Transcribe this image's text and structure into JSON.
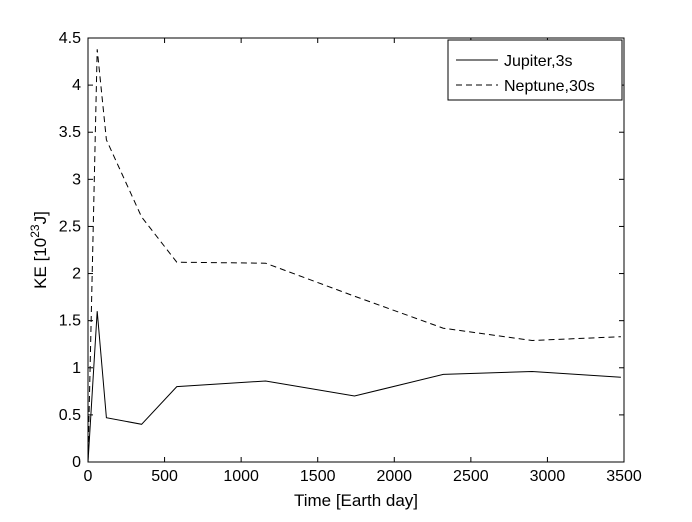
{
  "chart_data": {
    "type": "line",
    "title": "",
    "xlabel": "Time [Earth day]",
    "ylabel": {
      "prefix": "KE [10",
      "exponent": "23",
      "suffix": "J]"
    },
    "xlim": [
      0,
      3500
    ],
    "ylim": [
      0,
      4.5
    ],
    "xticks": [
      0,
      500,
      1000,
      1500,
      2000,
      2500,
      3000,
      3500
    ],
    "yticks": [
      0,
      0.5,
      1,
      1.5,
      2,
      2.5,
      3,
      3.5,
      4,
      4.5
    ],
    "xtick_labels": [
      "0",
      "500",
      "1000",
      "1500",
      "2000",
      "2500",
      "3000",
      "3500"
    ],
    "ytick_labels": [
      "0",
      "0.5",
      "1",
      "1.5",
      "2",
      "2.5",
      "3",
      "3.5",
      "4",
      "4.5"
    ],
    "grid": false,
    "legend_position": "top-right",
    "series": [
      {
        "name": "Jupiter,3s",
        "style": "solid",
        "color": "#000000",
        "x": [
          0,
          60,
          120,
          350,
          580,
          1160,
          1740,
          2320,
          2900,
          3480
        ],
        "y": [
          0,
          1.6,
          0.47,
          0.4,
          0.8,
          0.86,
          0.7,
          0.93,
          0.96,
          0.9
        ]
      },
      {
        "name": "Neptune,30s",
        "style": "dashed",
        "color": "#000000",
        "x": [
          0,
          60,
          120,
          350,
          580,
          1160,
          1740,
          2320,
          2900,
          3480
        ],
        "y": [
          0,
          4.38,
          3.42,
          2.6,
          2.12,
          2.11,
          1.76,
          1.42,
          1.29,
          1.33
        ]
      }
    ]
  }
}
